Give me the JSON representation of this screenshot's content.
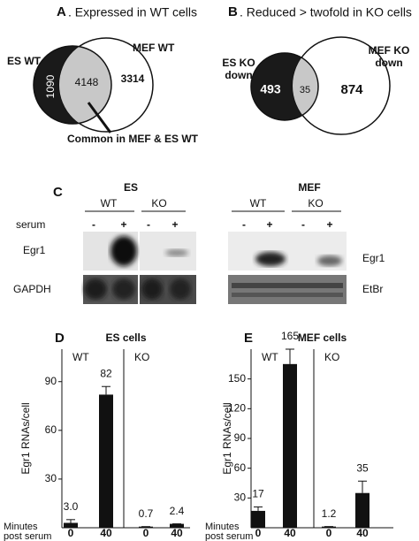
{
  "panel_a": {
    "letter": "A",
    "title": ". Expressed in WT cells",
    "left_label": "ES WT",
    "right_label": "MEF WT",
    "left_only": 1090,
    "common": 4148,
    "right_only": 3314,
    "callout": "Common in MEF & ES WT"
  },
  "panel_b": {
    "letter": "B",
    "title": ". Reduced > twofold in KO cells",
    "left_label": [
      "ES KO",
      "down"
    ],
    "right_label": [
      "MEF KO",
      "down"
    ],
    "left_only": 493,
    "common": 35,
    "right_only": 874
  },
  "panel_c": {
    "letter": "C",
    "serum_label": "serum",
    "groups": [
      {
        "name": "ES",
        "conditions": [
          "WT",
          "KO"
        ],
        "signs": [
          "-",
          "+",
          "-",
          "+"
        ],
        "rows": [
          "Egr1",
          "GAPDH"
        ]
      },
      {
        "name": "MEF",
        "conditions": [
          "WT",
          "KO"
        ],
        "signs": [
          "-",
          "+",
          "-",
          "+"
        ],
        "rows": [
          "Egr1",
          "EtBr"
        ]
      }
    ]
  },
  "chart_data": [
    {
      "type": "bar",
      "letter": "D",
      "title": "ES cells",
      "ylabel": "Egr1 RNAs/cell",
      "xlabel": [
        "Minutes",
        "post serum"
      ],
      "groups": [
        "WT",
        "KO"
      ],
      "categories": [
        "0",
        "40",
        "0",
        "40"
      ],
      "values": [
        3.0,
        82,
        0.7,
        2.4
      ],
      "value_labels": [
        "3.0",
        "82",
        "0.7",
        "2.4"
      ],
      "errors": [
        2,
        5,
        0,
        0
      ],
      "color": "#111111",
      "ylim": [
        0,
        110
      ],
      "yticks": [
        30,
        60,
        90
      ]
    },
    {
      "type": "bar",
      "letter": "E",
      "title": "MEF cells",
      "ylabel": "Egr1 RNAs/cell",
      "xlabel": [
        "Minutes",
        "post serum"
      ],
      "groups": [
        "WT",
        "KO"
      ],
      "categories": [
        "0",
        "40",
        "0",
        "40"
      ],
      "values": [
        17,
        165,
        1.2,
        35
      ],
      "value_labels": [
        "17",
        "165",
        "1.2",
        "35"
      ],
      "errors": [
        4,
        15,
        0,
        12
      ],
      "color": "#111111",
      "ylim": [
        0,
        180
      ],
      "yticks": [
        30,
        60,
        90,
        120,
        150
      ]
    }
  ]
}
